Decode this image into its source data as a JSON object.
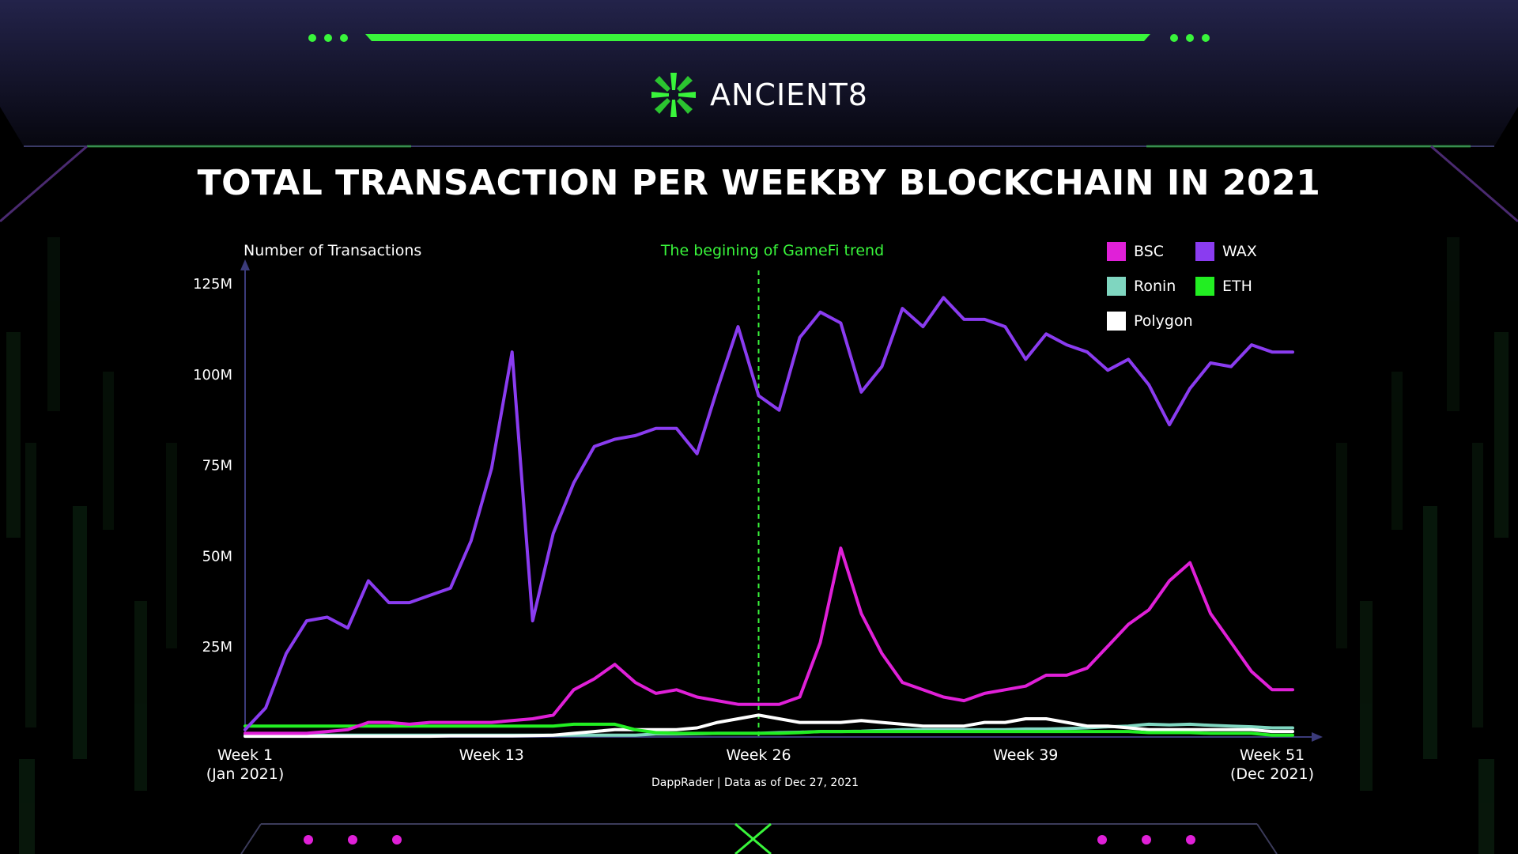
{
  "brand": {
    "name": "ANCIENT8",
    "accent": "#39f53b"
  },
  "colors": {
    "background": "#000000",
    "frame": "#1c1c34",
    "accent_green": "#39f53b",
    "accent_pink": "#e020d8"
  },
  "chart_data": {
    "type": "line",
    "title": "TOTAL TRANSACTION PER WEEKBY BLOCKCHAIN IN 2021",
    "ylabel": "Number of Transactions",
    "xlabel": "",
    "source": "DappRader | Data as of Dec 27, 2021",
    "annotation": {
      "label": "The begining of GameFi trend",
      "x": 26
    },
    "ylim": [
      0,
      125
    ],
    "xlim": [
      1,
      52
    ],
    "y_ticks": [
      {
        "value": 25,
        "label": "25M"
      },
      {
        "value": 50,
        "label": "50M"
      },
      {
        "value": 75,
        "label": "75M"
      },
      {
        "value": 100,
        "label": "100M"
      },
      {
        "value": 125,
        "label": "125M"
      }
    ],
    "x_ticks": [
      {
        "value": 1,
        "label": "Week 1",
        "sub": "(Jan 2021)"
      },
      {
        "value": 13,
        "label": "Week 13",
        "sub": ""
      },
      {
        "value": 26,
        "label": "Week 26",
        "sub": ""
      },
      {
        "value": 39,
        "label": "Week 39",
        "sub": ""
      },
      {
        "value": 51,
        "label": "Week 51",
        "sub": "(Dec 2021)"
      }
    ],
    "legend_position": "top-right",
    "grid": false,
    "x": [
      1,
      2,
      3,
      4,
      5,
      6,
      7,
      8,
      9,
      10,
      11,
      12,
      13,
      14,
      15,
      16,
      17,
      18,
      19,
      20,
      21,
      22,
      23,
      24,
      25,
      26,
      27,
      28,
      29,
      30,
      31,
      32,
      33,
      34,
      35,
      36,
      37,
      38,
      39,
      40,
      41,
      42,
      43,
      44,
      45,
      46,
      47,
      48,
      49,
      50,
      51,
      52
    ],
    "series": [
      {
        "name": "BSC",
        "color": "#e020d8",
        "values": [
          1,
          1,
          1,
          1,
          1.5,
          2,
          4,
          4,
          3.5,
          4,
          4,
          4,
          4,
          4.5,
          5,
          6,
          13,
          16,
          20,
          15,
          12,
          13,
          11,
          10,
          9,
          9,
          9,
          11,
          26,
          52,
          34,
          23,
          15,
          13,
          11,
          10,
          12,
          13,
          14,
          17,
          17,
          19,
          25,
          31,
          35,
          43,
          48,
          34,
          26,
          18,
          13,
          13
        ]
      },
      {
        "name": "WAX",
        "color": "#8a3cf0",
        "values": [
          2,
          8,
          23,
          32,
          33,
          30,
          43,
          37,
          37,
          39,
          41,
          54,
          74,
          106,
          32,
          56,
          70,
          80,
          82,
          83,
          85,
          85,
          78,
          96,
          113,
          94,
          90,
          110,
          117,
          114,
          95,
          102,
          118,
          113,
          121,
          115,
          115,
          113,
          104,
          111,
          108,
          106,
          101,
          104,
          97,
          86,
          96,
          103,
          102,
          108,
          106,
          106
        ]
      },
      {
        "name": "Ronin",
        "color": "#7fd6c0",
        "values": [
          0.5,
          0.5,
          0.5,
          0.5,
          0.5,
          0.5,
          0.5,
          0.5,
          0.5,
          0.5,
          0.5,
          0.5,
          0.5,
          0.5,
          0.5,
          0.5,
          0.5,
          0.5,
          0.5,
          0.5,
          0.8,
          0.8,
          0.9,
          1,
          1,
          1,
          1.2,
          1.3,
          1.5,
          1.5,
          1.6,
          1.8,
          2,
          2,
          2,
          2,
          2,
          2,
          2.2,
          2.2,
          2.3,
          2.5,
          2.8,
          3,
          3.5,
          3.3,
          3.5,
          3.2,
          3,
          2.8,
          2.5,
          2.5
        ]
      },
      {
        "name": "ETH",
        "color": "#22ee22",
        "values": [
          3,
          3,
          3,
          3,
          3,
          3,
          3,
          3,
          3,
          3,
          3,
          3,
          3,
          3,
          3,
          3,
          3.5,
          3.5,
          3.5,
          2,
          1.2,
          1,
          1,
          1,
          1,
          1,
          1,
          1.2,
          1.5,
          1.5,
          1.5,
          1.5,
          1.5,
          1.5,
          1.5,
          1.5,
          1.5,
          1.5,
          1.5,
          1.5,
          1.5,
          1.5,
          1.5,
          1.5,
          1.2,
          1.2,
          1.2,
          1,
          1,
          1,
          0.5,
          0.5
        ]
      },
      {
        "name": "Polygon",
        "color": "#ffffff",
        "values": [
          0.2,
          0.2,
          0.2,
          0.2,
          0.2,
          0.2,
          0.2,
          0.2,
          0.2,
          0.2,
          0.3,
          0.3,
          0.3,
          0.3,
          0.4,
          0.5,
          1,
          1.5,
          2,
          2,
          2,
          2,
          2.5,
          4,
          5,
          6,
          5,
          4,
          4,
          4,
          4.5,
          4,
          3.5,
          3,
          3,
          3,
          4,
          4,
          5,
          5,
          4,
          3,
          3,
          2.5,
          2,
          2,
          2,
          2,
          2,
          2,
          1.5,
          1.5
        ]
      }
    ]
  }
}
